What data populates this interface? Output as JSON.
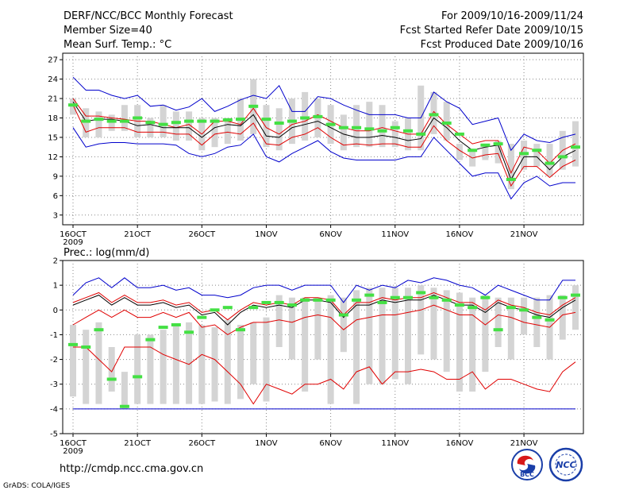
{
  "header": {
    "title": "DERF/NCC/BCC Monthly Forecast",
    "member_size": "Member Size=40",
    "variable": "Mean Surf. Temp.: °C",
    "period": "For 2009/10/16-2009/11/24",
    "started": "Fcst Started Refer Date 2009/10/15",
    "produced": "Fcst Produced Date 2009/10/16"
  },
  "footer": {
    "url": "http://cmdp.ncc.cma.gov.cn",
    "credit": "GrADS: COLA/IGES",
    "logo_bcc": "BCC",
    "logo_ncc": "NCC"
  },
  "colors": {
    "bar": "#d4d4d4",
    "green": "#44e044",
    "mean": "#000000",
    "red": "#e00000",
    "blue": "#0000cc",
    "dot": "#888888"
  },
  "chart_data": [
    {
      "type": "box-spread",
      "title": "Mean Surf. Temp.: °C",
      "xlabel": "",
      "ylabel": "",
      "ylim": [
        1.5,
        28
      ],
      "yticks": [
        3,
        6,
        9,
        12,
        15,
        18,
        21,
        24,
        27
      ],
      "x_tick_labels": [
        "16OCT",
        "21OCT",
        "26OCT",
        "1NOV",
        "6NOV",
        "11NOV",
        "16NOV",
        "21NOV"
      ],
      "x_tick_days": [
        1,
        6,
        11,
        16,
        21,
        26,
        31,
        36
      ],
      "x_sublabel": "2009",
      "days": [
        1,
        2,
        3,
        4,
        5,
        6,
        7,
        8,
        9,
        10,
        11,
        12,
        13,
        14,
        15,
        16,
        17,
        18,
        19,
        20,
        21,
        22,
        23,
        24,
        25,
        26,
        27,
        28,
        29,
        30,
        31,
        32,
        33,
        34,
        35,
        36,
        37,
        38,
        39,
        40
      ],
      "series": [
        {
          "name": "max",
          "color": "blue",
          "values": [
            24.3,
            22.3,
            22.3,
            21.5,
            21.0,
            21.5,
            19.8,
            20.0,
            19.2,
            19.7,
            21.0,
            19.0,
            19.8,
            20.8,
            21.5,
            21.0,
            23.0,
            19.0,
            19.0,
            21.3,
            21.0,
            20.0,
            19.2,
            18.5,
            18.5,
            18.5,
            18.0,
            18.0,
            22.0,
            20.5,
            19.5,
            17.0,
            17.5,
            18.0,
            13.0,
            15.5,
            14.5,
            14.2,
            15.0,
            15.5
          ]
        },
        {
          "name": "p90",
          "color": "red",
          "values": [
            21.0,
            18.3,
            18.3,
            18.0,
            17.8,
            17.5,
            17.5,
            17.0,
            16.5,
            17.0,
            15.5,
            17.5,
            17.5,
            17.0,
            19.5,
            16.5,
            15.5,
            17.0,
            17.5,
            18.5,
            17.5,
            16.5,
            16.0,
            16.0,
            16.5,
            16.0,
            15.5,
            15.5,
            19.0,
            17.0,
            15.5,
            14.0,
            14.5,
            14.5,
            9.5,
            13.5,
            13.0,
            11.0,
            13.0,
            14.0
          ]
        },
        {
          "name": "ensemble-mean",
          "color": "mean",
          "values": [
            20.5,
            17.5,
            17.8,
            17.8,
            17.5,
            16.8,
            17.0,
            16.5,
            16.5,
            16.5,
            15.0,
            16.5,
            17.0,
            16.8,
            18.5,
            15.2,
            15.0,
            16.5,
            17.0,
            17.5,
            16.5,
            15.5,
            15.0,
            15.0,
            15.3,
            15.0,
            14.5,
            14.8,
            18.0,
            16.5,
            14.5,
            13.0,
            13.5,
            13.8,
            8.5,
            12.0,
            12.0,
            10.0,
            12.0,
            13.0
          ]
        },
        {
          "name": "p10",
          "color": "red",
          "values": [
            20.0,
            15.8,
            16.5,
            16.5,
            16.5,
            15.8,
            15.8,
            15.8,
            15.5,
            15.5,
            13.8,
            15.5,
            15.8,
            15.5,
            17.2,
            14.0,
            13.8,
            15.0,
            15.5,
            16.5,
            15.0,
            13.8,
            14.0,
            13.8,
            14.0,
            14.0,
            13.5,
            13.5,
            16.8,
            14.5,
            13.0,
            11.8,
            12.3,
            12.5,
            7.5,
            10.5,
            10.5,
            8.8,
            10.5,
            11.5
          ]
        },
        {
          "name": "min",
          "color": "blue",
          "values": [
            16.5,
            13.5,
            14.0,
            14.2,
            14.2,
            14.0,
            14.0,
            14.0,
            13.8,
            12.5,
            12.0,
            12.5,
            13.5,
            13.8,
            15.5,
            12.0,
            11.2,
            12.5,
            13.5,
            14.5,
            12.8,
            11.8,
            11.5,
            11.5,
            11.5,
            11.5,
            12.0,
            12.0,
            15.0,
            13.0,
            11.0,
            9.0,
            9.5,
            9.5,
            5.5,
            8.0,
            9.0,
            7.5,
            8.0,
            8.0
          ]
        },
        {
          "name": "bar_top",
          "color": "bar",
          "values": [
            21.0,
            19.5,
            19.0,
            18.5,
            20.0,
            20.0,
            18.0,
            20.0,
            19.0,
            19.0,
            18.0,
            18.0,
            18.0,
            21.0,
            24.0,
            20.0,
            19.5,
            21.0,
            22.0,
            21.0,
            20.0,
            18.5,
            20.0,
            20.5,
            20.0,
            17.5,
            18.0,
            23.0,
            22.0,
            20.5,
            14.0,
            13.0,
            13.5,
            14.5,
            14.0,
            14.5,
            14.0,
            14.0,
            16.0,
            17.5
          ]
        },
        {
          "name": "bar_bottom",
          "color": "bar",
          "values": [
            18.5,
            15.0,
            15.0,
            16.0,
            16.0,
            15.0,
            15.0,
            15.0,
            14.5,
            14.5,
            13.0,
            13.5,
            14.0,
            14.5,
            15.5,
            13.5,
            13.0,
            14.0,
            14.5,
            15.0,
            14.0,
            13.0,
            13.5,
            13.5,
            13.5,
            13.5,
            13.0,
            13.0,
            15.5,
            14.5,
            11.5,
            10.5,
            11.5,
            11.0,
            7.0,
            10.0,
            10.5,
            9.0,
            10.0,
            10.5
          ]
        },
        {
          "name": "observed-ref",
          "color": "green",
          "values": [
            20.0,
            17.5,
            17.8,
            17.5,
            17.5,
            18.0,
            17.3,
            17.0,
            17.3,
            17.5,
            17.5,
            17.5,
            17.7,
            17.8,
            19.8,
            17.8,
            17.2,
            17.5,
            18.0,
            18.2,
            17.0,
            16.5,
            16.5,
            16.3,
            16.0,
            16.5,
            16.0,
            15.5,
            18.5,
            17.2,
            15.5,
            13.0,
            13.8,
            14.0,
            8.5,
            12.5,
            13.0,
            11.0,
            12.0,
            13.5
          ]
        }
      ]
    },
    {
      "type": "box-spread",
      "title": "Prec.: log(mm/d)",
      "xlabel": "",
      "ylabel": "",
      "ylim": [
        -5,
        2
      ],
      "yticks": [
        -5,
        -4,
        -3,
        -2,
        -1,
        0,
        1,
        2
      ],
      "x_tick_labels": [
        "16OCT",
        "21OCT",
        "26OCT",
        "1NOV",
        "6NOV",
        "11NOV",
        "16NOV",
        "21NOV"
      ],
      "x_tick_days": [
        1,
        6,
        11,
        16,
        21,
        26,
        31,
        36
      ],
      "x_sublabel": "2009",
      "days": [
        1,
        2,
        3,
        4,
        5,
        6,
        7,
        8,
        9,
        10,
        11,
        12,
        13,
        14,
        15,
        16,
        17,
        18,
        19,
        20,
        21,
        22,
        23,
        24,
        25,
        26,
        27,
        28,
        29,
        30,
        31,
        32,
        33,
        34,
        35,
        36,
        37,
        38,
        39,
        40
      ],
      "series": [
        {
          "name": "max",
          "color": "blue",
          "values": [
            0.6,
            1.1,
            1.3,
            0.9,
            1.3,
            0.9,
            0.9,
            1.0,
            0.8,
            0.9,
            0.6,
            0.6,
            0.5,
            0.6,
            0.9,
            1.0,
            1.0,
            0.8,
            1.0,
            1.0,
            1.0,
            0.3,
            1.0,
            0.8,
            1.0,
            0.9,
            1.2,
            1.1,
            1.3,
            1.2,
            1.0,
            0.9,
            0.6,
            1.0,
            0.8,
            0.6,
            0.4,
            0.4,
            1.2,
            1.2
          ]
        },
        {
          "name": "p90",
          "color": "red",
          "values": [
            0.3,
            0.5,
            0.7,
            0.3,
            0.6,
            0.3,
            0.3,
            0.4,
            0.2,
            0.3,
            -0.1,
            0.0,
            -0.4,
            0.0,
            0.3,
            0.2,
            0.3,
            0.2,
            0.5,
            0.5,
            0.4,
            -0.2,
            0.3,
            0.3,
            0.5,
            0.4,
            0.5,
            0.5,
            0.7,
            0.5,
            0.3,
            0.3,
            0.0,
            0.4,
            0.2,
            0.1,
            -0.1,
            -0.2,
            0.2,
            0.5
          ]
        },
        {
          "name": "ensemble-mean",
          "color": "mean",
          "values": [
            0.2,
            0.4,
            0.6,
            0.2,
            0.5,
            0.2,
            0.2,
            0.3,
            0.1,
            0.2,
            -0.2,
            -0.1,
            -0.6,
            -0.1,
            0.2,
            0.1,
            0.2,
            0.1,
            0.4,
            0.4,
            0.3,
            -0.3,
            0.2,
            0.2,
            0.4,
            0.3,
            0.4,
            0.4,
            0.6,
            0.4,
            0.2,
            0.2,
            -0.1,
            0.3,
            0.1,
            0.0,
            -0.2,
            -0.3,
            0.1,
            0.4
          ]
        },
        {
          "name": "p10",
          "color": "red",
          "values": [
            -0.6,
            -0.3,
            0.0,
            -0.3,
            0.0,
            -0.3,
            -0.3,
            -0.1,
            -0.3,
            -0.1,
            -0.7,
            -0.6,
            -1.0,
            -0.7,
            -0.5,
            -0.5,
            -0.4,
            -0.5,
            -0.3,
            -0.2,
            -0.3,
            -0.8,
            -0.4,
            -0.3,
            -0.2,
            -0.2,
            -0.1,
            0.0,
            0.2,
            0.0,
            -0.2,
            -0.2,
            -0.6,
            -0.2,
            -0.3,
            -0.5,
            -0.6,
            -0.7,
            -0.2,
            -0.1
          ]
        },
        {
          "name": "min-pct",
          "color": "red",
          "values": [
            -1.5,
            -1.5,
            -2.0,
            -2.5,
            -1.5,
            -1.5,
            -1.5,
            -1.8,
            -2.0,
            -2.2,
            -1.8,
            -2.0,
            -2.5,
            -3.0,
            -3.8,
            -3.0,
            -3.2,
            -3.4,
            -3.0,
            -3.0,
            -2.8,
            -3.2,
            -2.5,
            -2.3,
            -3.0,
            -2.5,
            -2.5,
            -2.4,
            -2.5,
            -2.8,
            -2.8,
            -2.5,
            -3.2,
            -2.8,
            -2.8,
            -3.0,
            -3.2,
            -3.3,
            -2.5,
            -2.1
          ]
        },
        {
          "name": "floor",
          "color": "blue",
          "values": [
            -4,
            -4,
            -4,
            -4,
            -4,
            -4,
            -4,
            -4,
            -4,
            -4,
            -4,
            -4,
            -4,
            -4,
            -4,
            -4,
            -4,
            -4,
            -4,
            -4,
            -4,
            -4,
            -4,
            -4,
            -4,
            -4,
            -4,
            -4,
            -4,
            -4,
            -4,
            -4,
            -4,
            -4,
            -4,
            -4,
            -4,
            -4,
            -4,
            -4
          ]
        },
        {
          "name": "bar_top",
          "color": "bar",
          "values": [
            -0.6,
            -0.8,
            -0.5,
            -1.5,
            -2.5,
            -1.0,
            -1.0,
            -0.8,
            -0.6,
            -0.5,
            -0.6,
            -0.7,
            -0.4,
            -0.6,
            -0.5,
            -0.3,
            0.6,
            0.5,
            0.5,
            0.5,
            0.6,
            0.5,
            0.8,
            0.9,
            0.9,
            0.9,
            0.9,
            1.0,
            0.9,
            0.8,
            0.7,
            0.5,
            0.6,
            0.5,
            0.5,
            0.5,
            0.5,
            0.6,
            0.6,
            1.0
          ]
        },
        {
          "name": "bar_bottom",
          "color": "bar",
          "values": [
            -3.5,
            -3.8,
            -3.8,
            -3.3,
            -4.0,
            -3.8,
            -3.8,
            -3.8,
            -3.8,
            -3.8,
            -3.8,
            -3.7,
            -3.8,
            -3.6,
            -3.0,
            -3.7,
            -1.5,
            -2.0,
            -3.3,
            -2.0,
            -3.8,
            -1.7,
            -3.8,
            -3.0,
            -3.0,
            -2.8,
            -3.0,
            -1.8,
            -2.0,
            -2.5,
            -3.3,
            -3.3,
            -2.5,
            -1.5,
            -2.0,
            -1.0,
            -1.5,
            -2.0,
            -1.2,
            -0.8
          ]
        },
        {
          "name": "observed-ref",
          "color": "green",
          "values": [
            -1.4,
            -1.5,
            -0.8,
            -2.8,
            -3.9,
            -2.7,
            -1.2,
            -0.7,
            -0.6,
            -0.9,
            -0.3,
            0.0,
            0.1,
            -0.8,
            0.1,
            0.3,
            0.3,
            0.2,
            0.4,
            0.4,
            0.4,
            -0.2,
            0.4,
            0.6,
            0.3,
            0.5,
            0.5,
            0.7,
            0.5,
            0.4,
            0.2,
            0.1,
            0.5,
            -0.8,
            0.1,
            0.0,
            -0.3,
            -0.4,
            0.5,
            0.6
          ]
        }
      ]
    }
  ]
}
